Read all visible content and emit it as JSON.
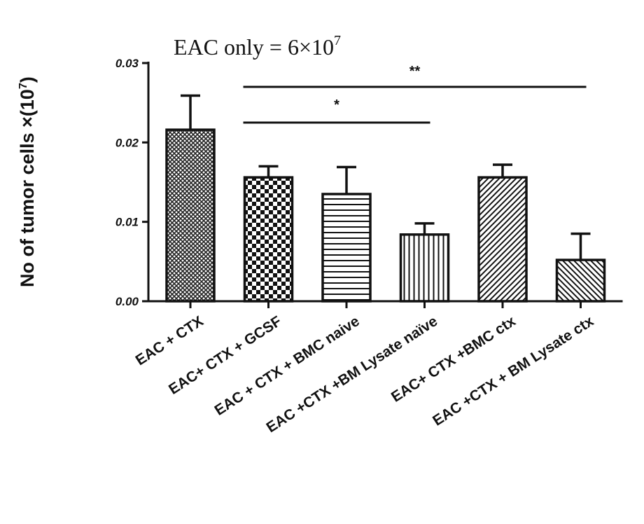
{
  "chart_data": {
    "type": "bar",
    "annotation": {
      "text": "EAC only =  6×10",
      "sup": "7"
    },
    "ylabel": {
      "text": "No of tumor cells ×(10",
      "sup": "7",
      "close": ")"
    },
    "ylim": [
      0,
      0.03
    ],
    "yticks": [
      "0.00",
      "0.01",
      "0.02",
      "0.03"
    ],
    "categories": [
      "EAC + CTX",
      "EAC+ CTX + GCSF",
      "EAC + CTX +  BMC naive",
      "EAC +CTX +BM Lysate  naïve",
      "EAC+ CTX +BMC ctx",
      "EAC +CTX + BM Lysate ctx"
    ],
    "values": [
      0.0216,
      0.0156,
      0.0135,
      0.0084,
      0.0156,
      0.0052
    ],
    "errors": [
      0.0043,
      0.0014,
      0.0034,
      0.0014,
      0.0016,
      0.0033
    ],
    "patterns": [
      "crosshatch",
      "checker",
      "horizontal",
      "vertical",
      "diagonal-right",
      "diagonal-left"
    ],
    "significance": [
      {
        "label": "*",
        "from": 1,
        "to": 3
      },
      {
        "label": "**",
        "from": 1,
        "to": 5
      }
    ],
    "grid": false,
    "legend": "none"
  }
}
